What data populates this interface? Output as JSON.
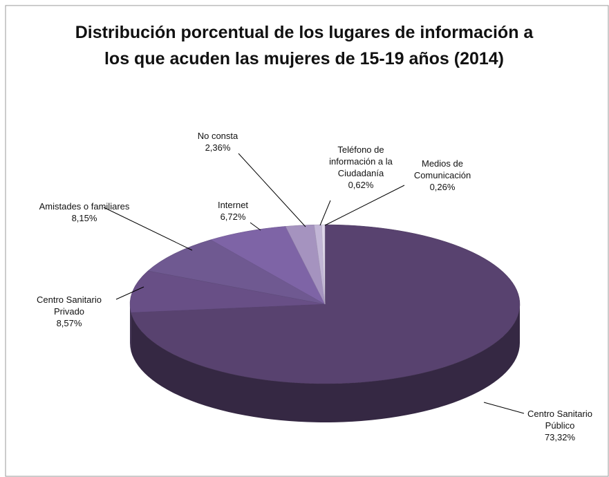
{
  "chart_data": {
    "type": "pie",
    "title": "Distribución porcentual de los lugares de información a los que acuden las mujeres de 15-19 años (2014)",
    "categories": [
      "Centro Sanitario Público",
      "Centro Sanitario Privado",
      "Amistades o familiares",
      "Internet",
      "No consta",
      "Teléfono de información a la Ciudadanía",
      "Medios de Comunicación"
    ],
    "values": [
      73.32,
      8.57,
      8.15,
      6.72,
      2.36,
      0.62,
      0.26
    ],
    "value_labels": [
      "73,32%",
      "8,57%",
      "8,15%",
      "6,72%",
      "2,36%",
      "0,62%",
      "0,26%"
    ],
    "colors": [
      "#58426f",
      "#684f86",
      "#6f5991",
      "#7e64a6",
      "#a593bf",
      "#c2b6d6",
      "#ded7ea"
    ]
  }
}
